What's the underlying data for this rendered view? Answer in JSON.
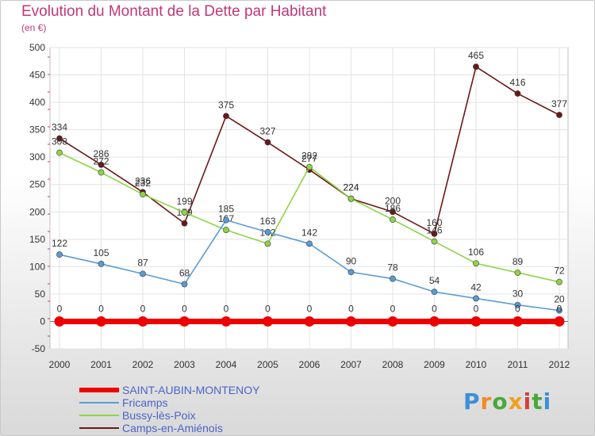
{
  "title": "Evolution du Montant de la Dette par Habitant",
  "unit": "(en €)",
  "logo": {
    "text": "Proxiti",
    "colors": [
      "#3d8fd6",
      "#f08a24",
      "#4aa83a",
      "#f0a020",
      "#d63d3d",
      "#4aa83a",
      "#3d8fd6"
    ]
  },
  "legend": [
    {
      "label": "SAINT-AUBIN-MONTENOY",
      "color": "#ee0000"
    },
    {
      "label": "Fricamps",
      "color": "#5b9bd5"
    },
    {
      "label": "Bussy-lès-Poix",
      "color": "#8fd448"
    },
    {
      "label": "Camps-en-Amiénois",
      "color": "#6b1818"
    }
  ],
  "chart_data": {
    "type": "line",
    "title": "Evolution du Montant de la Dette par Habitant",
    "ylabel": "(en €)",
    "xlabel": "",
    "ylim": [
      -50,
      500
    ],
    "yticks": [
      -50,
      0,
      50,
      100,
      150,
      200,
      250,
      300,
      350,
      400,
      450,
      500
    ],
    "grid": true,
    "legend_position": "bottom",
    "x": [
      "2000",
      "2001",
      "2002",
      "2003",
      "2004",
      "2005",
      "2006",
      "2007",
      "2008",
      "2009",
      "2010",
      "2011",
      "2012"
    ],
    "series": [
      {
        "name": "SAINT-AUBIN-MONTENOY",
        "color": "#ee0000",
        "values": [
          0,
          0,
          0,
          0,
          0,
          0,
          0,
          0,
          0,
          0,
          0,
          0,
          0
        ]
      },
      {
        "name": "Fricamps",
        "color": "#5b9bd5",
        "values": [
          122,
          105,
          87,
          68,
          185,
          163,
          142,
          90,
          78,
          54,
          42,
          30,
          20
        ]
      },
      {
        "name": "Bussy-lès-Poix",
        "color": "#8fd448",
        "values": [
          308,
          272,
          232,
          199,
          167,
          142,
          282,
          224,
          186,
          146,
          106,
          89,
          72
        ]
      },
      {
        "name": "Camps-en-Amiénois",
        "color": "#6b1818",
        "values": [
          334,
          286,
          236,
          179,
          375,
          327,
          277,
          224,
          200,
          160,
          465,
          416,
          377
        ]
      }
    ]
  }
}
